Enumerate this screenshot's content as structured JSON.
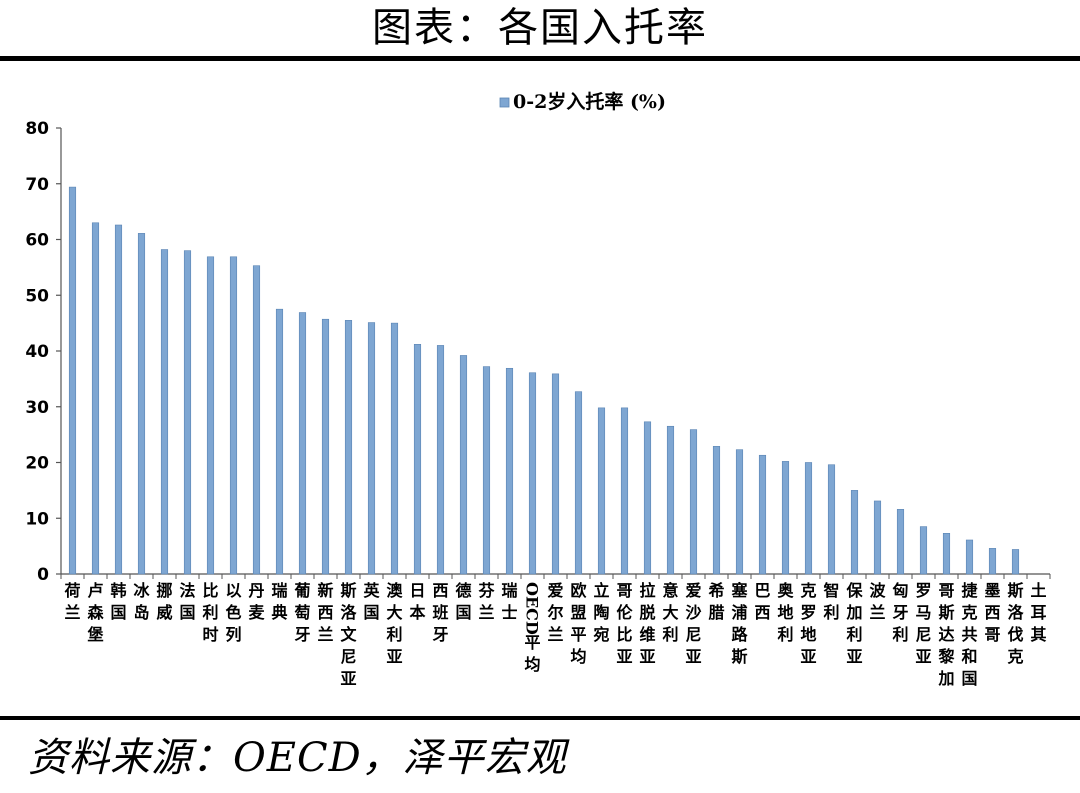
{
  "header": {
    "title": "图表：各国入托率"
  },
  "footer": {
    "source": "资料来源：OECD，泽平宏观"
  },
  "colors": {
    "bar": "#7ea6d2",
    "bar_edge": "#5a84b3",
    "axis": "#555555"
  },
  "chart_data": {
    "type": "bar",
    "title": "",
    "xlabel": "",
    "ylabel": "",
    "ylim": [
      0,
      80
    ],
    "yticks": [
      0,
      10,
      20,
      30,
      40,
      50,
      60,
      70,
      80
    ],
    "legend": "top-center",
    "grid": false,
    "categories": [
      "荷兰",
      "卢森堡",
      "韩国",
      "冰岛",
      "挪威",
      "法国",
      "比利时",
      "以色列",
      "丹麦",
      "瑞典",
      "葡萄牙",
      "新西兰",
      "斯洛文尼亚",
      "英国",
      "澳大利亚",
      "日本",
      "西班牙",
      "德国",
      "芬兰",
      "瑞士",
      "OECD平均",
      "爱尔兰",
      "欧盟平均",
      "立陶宛",
      "哥伦比亚",
      "拉脱维亚",
      "意大利",
      "爱沙尼亚",
      "希腊",
      "塞浦路斯",
      "巴西",
      "奥地利",
      "克罗地亚",
      "智利",
      "保加利亚",
      "波兰",
      "匈牙利",
      "罗马尼亚",
      "哥斯达黎加",
      "捷克共和国",
      "墨西哥",
      "斯洛伐克",
      "土耳其"
    ],
    "series": [
      {
        "name": "0-2岁入托率 (%)",
        "values": [
          69.4,
          63.0,
          62.6,
          61.1,
          58.2,
          58.0,
          56.9,
          56.9,
          55.3,
          47.5,
          46.9,
          45.7,
          45.5,
          45.1,
          45.0,
          41.2,
          41.0,
          39.2,
          37.2,
          36.9,
          36.1,
          35.9,
          32.7,
          29.8,
          29.8,
          27.3,
          26.5,
          25.9,
          22.9,
          22.3,
          21.3,
          20.2,
          20.0,
          19.6,
          15.0,
          13.1,
          11.6,
          8.5,
          7.3,
          6.1,
          4.6,
          4.4,
          0.0
        ]
      }
    ]
  }
}
